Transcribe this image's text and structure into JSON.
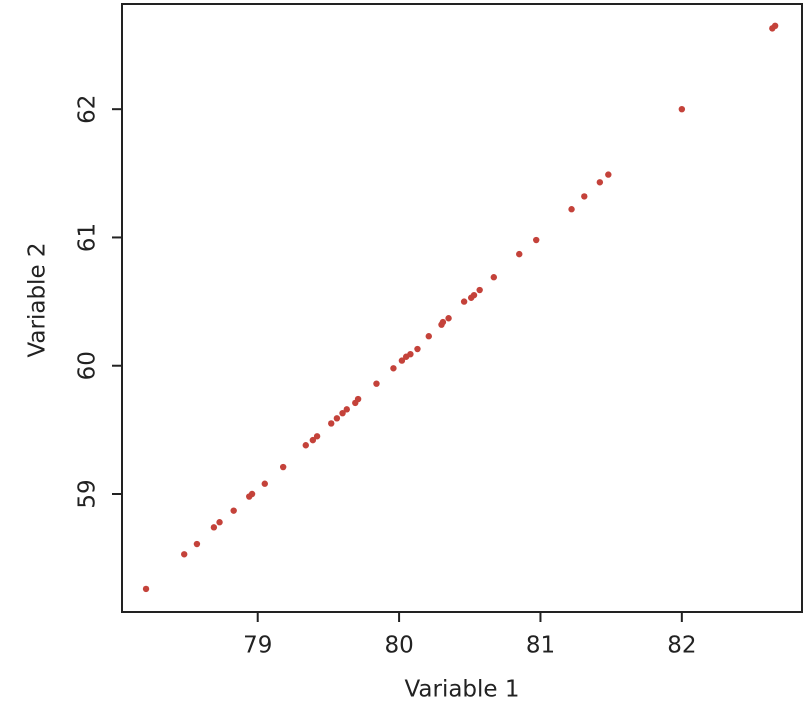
{
  "chart_data": {
    "type": "scatter",
    "x_label": "Variable 1",
    "y_label": "Variable 2",
    "x": [
      78.21,
      78.48,
      78.57,
      78.69,
      78.73,
      78.83,
      78.94,
      78.96,
      79.05,
      79.18,
      79.34,
      79.39,
      79.42,
      79.52,
      79.56,
      79.6,
      79.63,
      79.69,
      79.71,
      79.84,
      79.96,
      80.02,
      80.05,
      80.08,
      80.13,
      80.21,
      80.3,
      80.31,
      80.35,
      80.46,
      80.51,
      80.53,
      80.57,
      80.67,
      80.85,
      80.97,
      81.22,
      81.31,
      81.42,
      81.48,
      82.0,
      82.64,
      82.66
    ],
    "values": [
      58.26,
      58.53,
      58.61,
      58.74,
      58.78,
      58.87,
      58.98,
      59.0,
      59.08,
      59.21,
      59.38,
      59.42,
      59.45,
      59.55,
      59.59,
      59.63,
      59.66,
      59.71,
      59.74,
      59.86,
      59.98,
      60.04,
      60.07,
      60.09,
      60.13,
      60.23,
      60.32,
      60.34,
      60.37,
      60.5,
      60.53,
      60.55,
      60.59,
      60.69,
      60.87,
      60.98,
      61.22,
      61.32,
      61.43,
      61.49,
      62.0,
      62.63,
      62.65
    ],
    "color": "#c4423a",
    "xlim": [
      78.04,
      82.85
    ],
    "xticks": [
      79,
      80,
      81,
      82
    ],
    "ylim": [
      58.08,
      62.82
    ],
    "yticks": [
      59,
      60,
      61,
      62
    ],
    "grid": false
  }
}
